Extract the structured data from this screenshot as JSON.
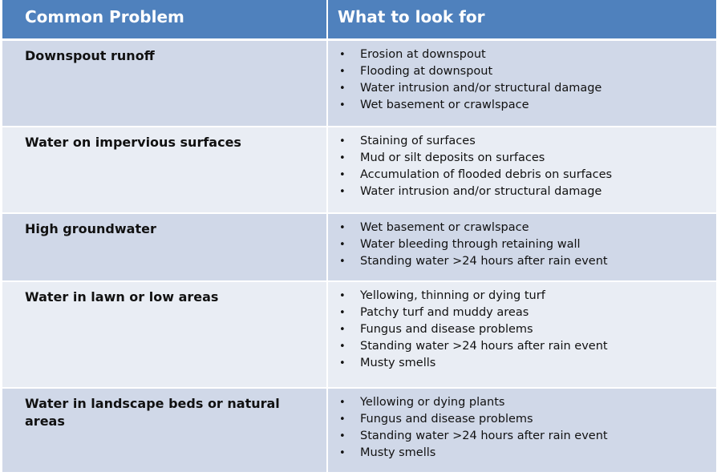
{
  "table": {
    "headers": [
      "Common Problem",
      "What to look for"
    ],
    "rows": [
      {
        "problem": "Downspout runoff",
        "look_for": [
          "Erosion at downspout",
          "Flooding at downspout",
          "Water intrusion and/or structural damage",
          "Wet basement or crawlspace"
        ]
      },
      {
        "problem": "Water on impervious surfaces",
        "look_for": [
          "Staining of surfaces",
          "Mud or silt deposits on surfaces",
          "Accumulation of flooded debris on surfaces",
          "Water intrusion and/or structural damage"
        ]
      },
      {
        "problem": "High groundwater",
        "look_for": [
          "Wet basement or crawlspace",
          "Water bleeding through retaining wall",
          "Standing water >24 hours after rain event"
        ]
      },
      {
        "problem": "Water in lawn or low areas",
        "look_for": [
          "Yellowing, thinning or dying turf",
          "Patchy turf and muddy areas",
          "Fungus and disease problems",
          "Standing water >24 hours after rain event",
          "Musty smells"
        ]
      },
      {
        "problem": "Water in landscape beds or natural areas",
        "look_for": [
          "Yellowing or dying plants",
          "Fungus and disease problems",
          "Standing water >24 hours after rain event",
          "Musty smells"
        ]
      }
    ]
  },
  "colors": {
    "header_bg": "#4f81bd",
    "row_dark": "#d0d8e8",
    "row_light": "#e9edf4"
  }
}
